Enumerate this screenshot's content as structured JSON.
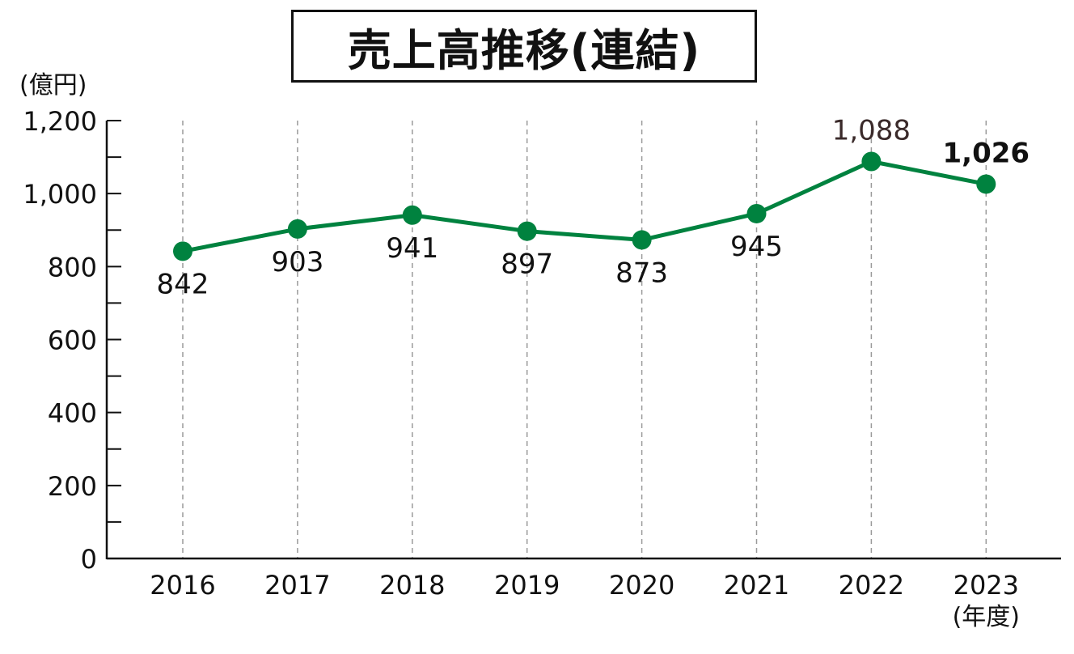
{
  "chart_data": {
    "type": "line",
    "title": "売上高推移(連結)",
    "ylabel": "(億円)",
    "xlabel": "(年度)",
    "categories": [
      "2016",
      "2017",
      "2018",
      "2019",
      "2020",
      "2021",
      "2022",
      "2023"
    ],
    "series": [
      {
        "values": [
          842,
          903,
          941,
          897,
          873,
          945,
          1088,
          1026
        ]
      }
    ],
    "value_labels": [
      "842",
      "903",
      "941",
      "897",
      "873",
      "945",
      "1,088",
      "1,026"
    ],
    "yticks": [
      "0",
      "200",
      "400",
      "600",
      "800",
      "1,000",
      "1,200"
    ],
    "ylim": [
      0,
      1200
    ],
    "grid": "vertical dashed",
    "line_color": "#00823f"
  }
}
